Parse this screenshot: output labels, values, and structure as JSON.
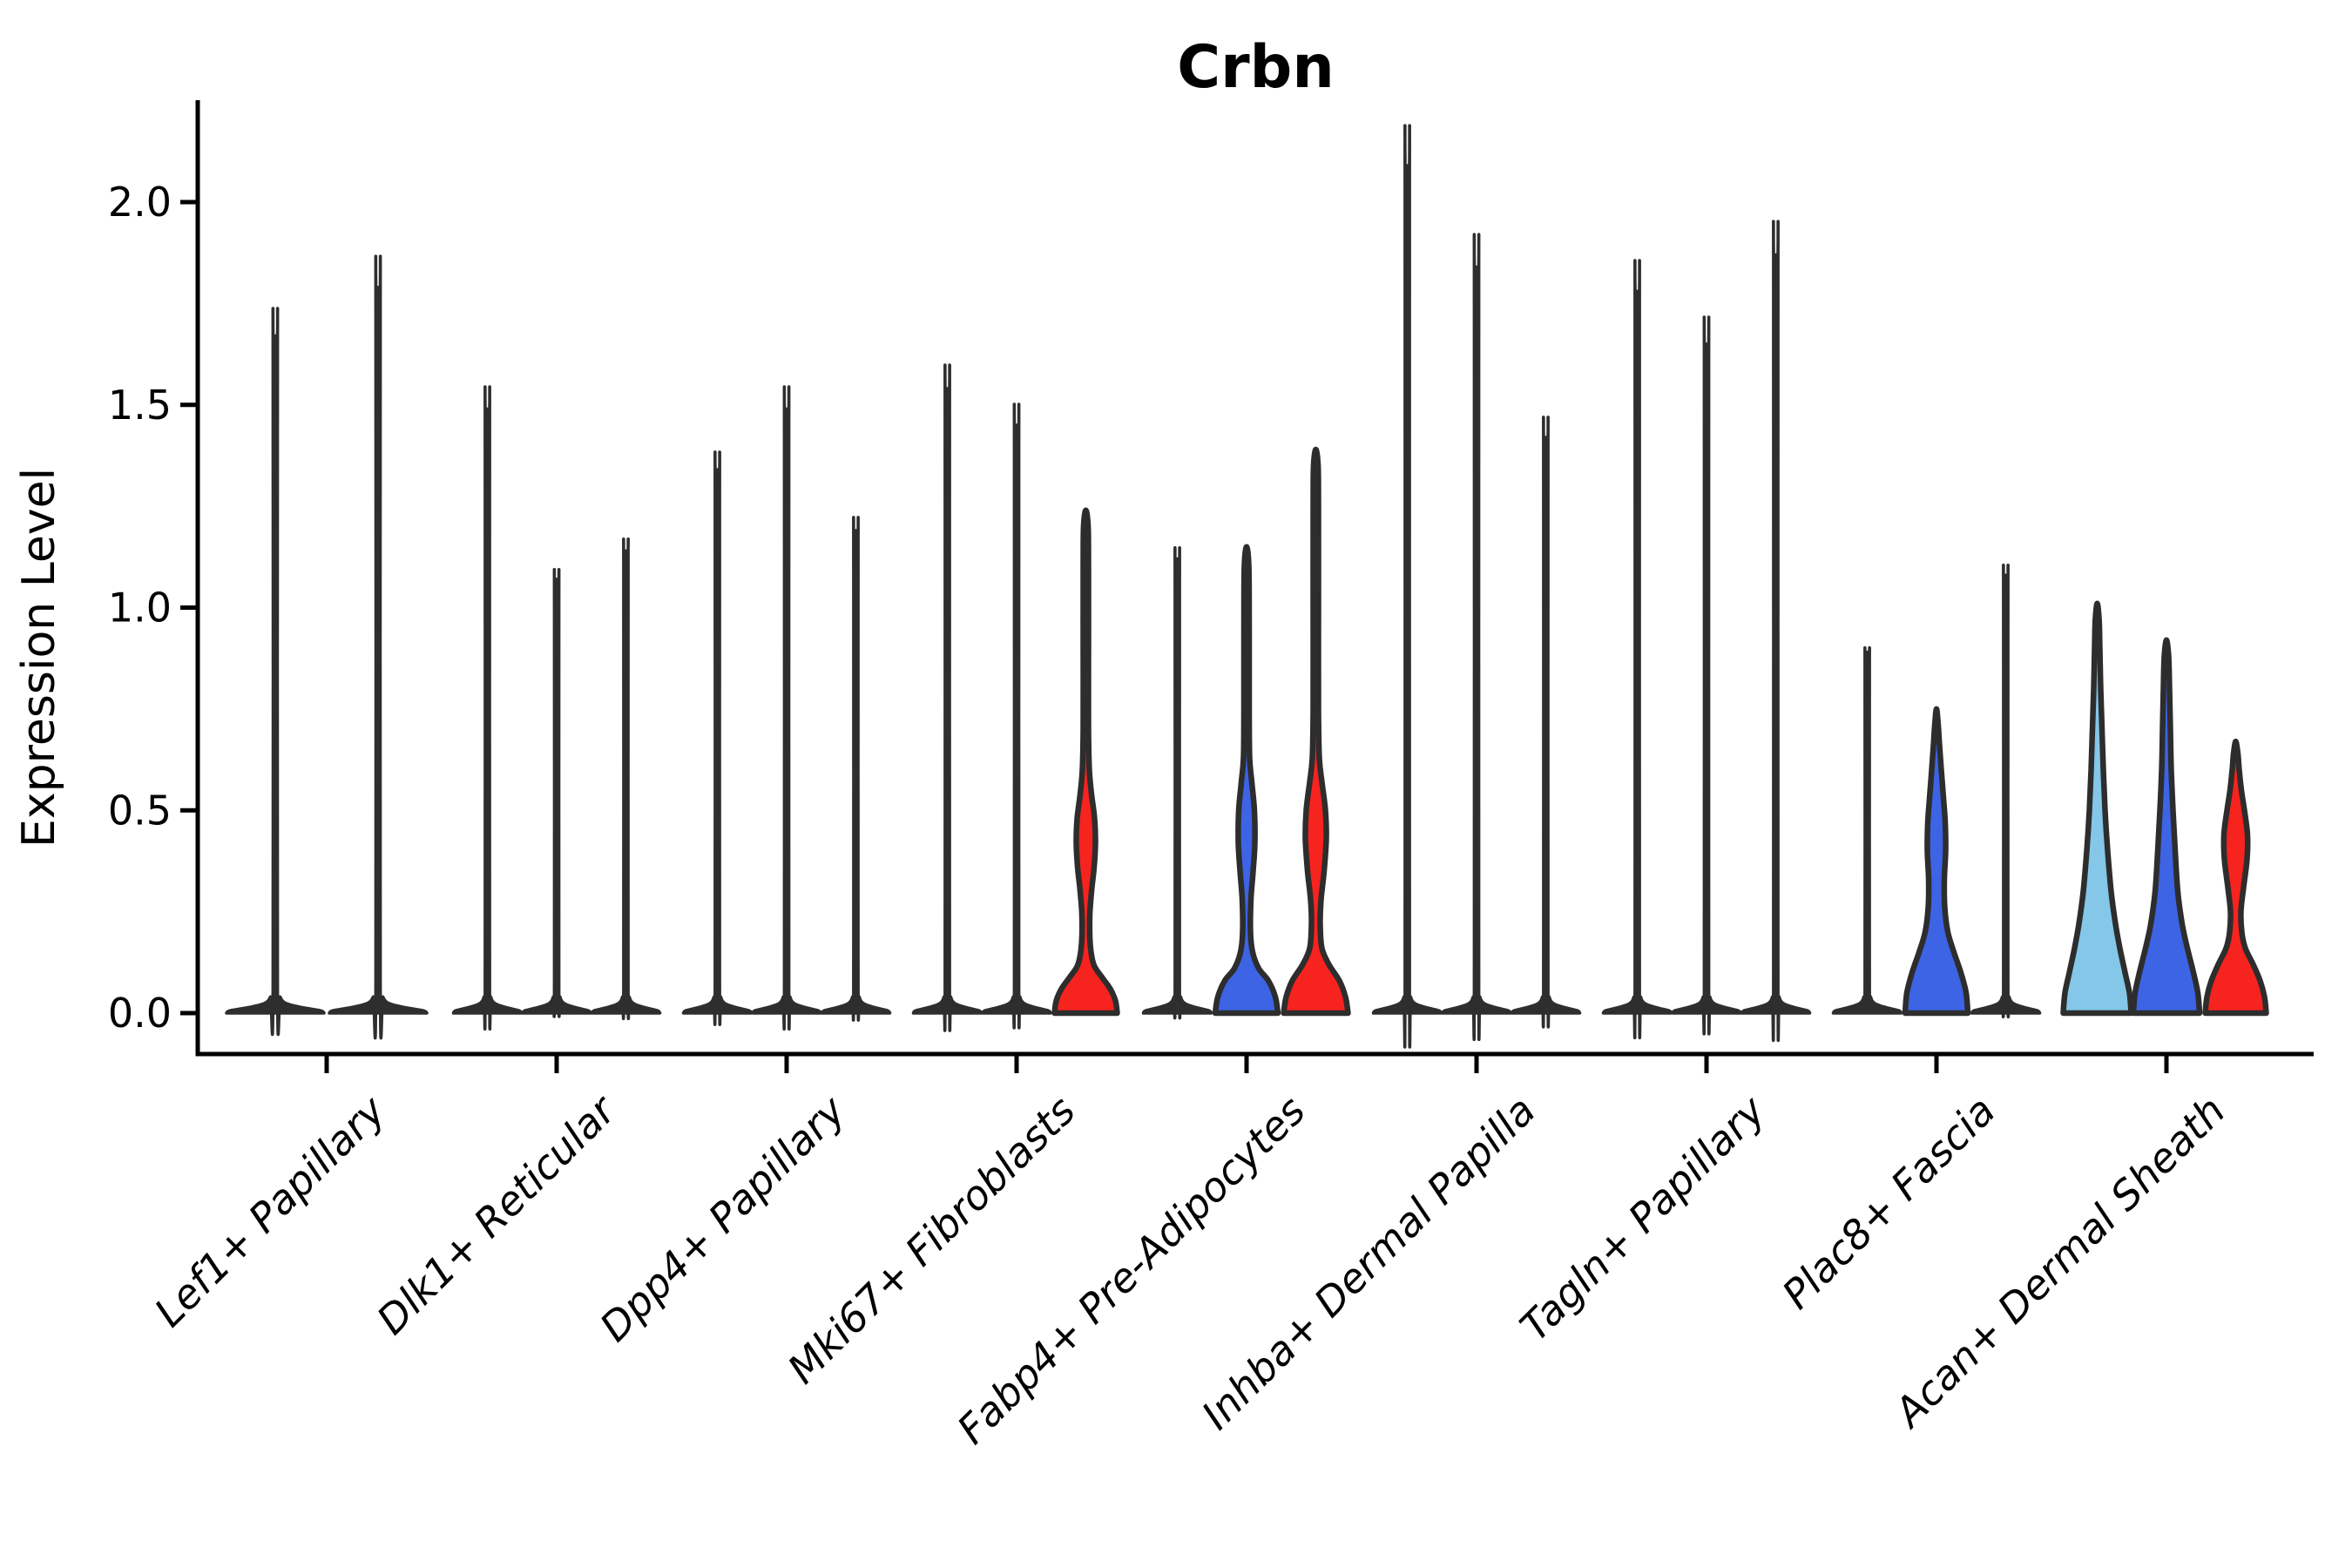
{
  "chart_data": {
    "type": "violin",
    "title": "Crbn",
    "ylabel": "Expression Level",
    "xlabel": "",
    "grid": false,
    "legend_position": "none",
    "ylim": [
      0.0,
      2.15
    ],
    "ytick_values": [
      0.0,
      0.5,
      1.0,
      1.5,
      2.0
    ],
    "ytick_labels": [
      "0.0",
      "0.5",
      "1.0",
      "1.5",
      "2.0"
    ],
    "categories": [
      "Lef1+ Papillary",
      "Dlk1+ Reticular",
      "Dpp4+ Papillary",
      "Mki67+ Fibroblasts",
      "Fabp4+ Pre-Adipocytes",
      "Inhba+ Dermal Papilla",
      "Tagln+ Papillary",
      "Plac8+ Fascia",
      "Acan+ Dermal Sheath"
    ],
    "palette": {
      "split1": "#84c7e8",
      "split2": "#3d64e5",
      "split3": "#f7231f",
      "thin": "#2e2e2e",
      "outline": "#2d2d2d",
      "axis": "#000000"
    },
    "groups": [
      {
        "label": "Lef1+ Papillary",
        "violins": [
          {
            "kind": "thin",
            "max": 1.67
          },
          {
            "kind": "thin",
            "max": 1.79
          }
        ]
      },
      {
        "label": "Dlk1+ Reticular",
        "violins": [
          {
            "kind": "thin",
            "max": 1.49
          },
          {
            "kind": "thin",
            "max": 1.07
          },
          {
            "kind": "thin",
            "max": 1.14
          }
        ]
      },
      {
        "label": "Dpp4+ Papillary",
        "violins": [
          {
            "kind": "thin",
            "max": 1.34
          },
          {
            "kind": "thin",
            "max": 1.49
          },
          {
            "kind": "thin",
            "max": 1.19
          }
        ]
      },
      {
        "label": "Mki67+ Fibroblasts",
        "violins": [
          {
            "kind": "thin",
            "max": 1.54
          },
          {
            "kind": "thin",
            "max": 1.45
          },
          {
            "kind": "body",
            "color": "split3",
            "max": 1.24,
            "profile": [
              [
                0,
                36
              ],
              [
                0.03,
                34
              ],
              [
                0.06,
                28
              ],
              [
                0.09,
                18
              ],
              [
                0.12,
                9
              ],
              [
                0.17,
                5
              ],
              [
                0.24,
                4.5
              ],
              [
                0.3,
                6.5
              ],
              [
                0.36,
                9.5
              ],
              [
                0.42,
                11
              ],
              [
                0.48,
                10
              ],
              [
                0.54,
                6.5
              ],
              [
                0.6,
                4
              ],
              [
                0.7,
                3
              ],
              [
                0.9,
                3
              ],
              [
                1.1,
                3
              ],
              [
                1.2,
                2.6
              ],
              [
                1.24,
                0
              ]
            ]
          }
        ]
      },
      {
        "label": "Fabp4+ Pre-Adipocytes",
        "violins": [
          {
            "kind": "thin",
            "max": 1.12
          },
          {
            "kind": "body",
            "color": "split2",
            "max": 1.15,
            "profile": [
              [
                0,
                36
              ],
              [
                0.04,
                33
              ],
              [
                0.08,
                25
              ],
              [
                0.11,
                14
              ],
              [
                0.15,
                7
              ],
              [
                0.2,
                4.5
              ],
              [
                0.28,
                5
              ],
              [
                0.35,
                7.5
              ],
              [
                0.42,
                9.5
              ],
              [
                0.5,
                9
              ],
              [
                0.57,
                6
              ],
              [
                0.63,
                3.5
              ],
              [
                0.75,
                3
              ],
              [
                0.95,
                3
              ],
              [
                1.1,
                2.6
              ],
              [
                1.15,
                0
              ]
            ]
          },
          {
            "kind": "body",
            "color": "split3",
            "max": 1.39,
            "profile": [
              [
                0,
                37
              ],
              [
                0.04,
                34
              ],
              [
                0.08,
                27
              ],
              [
                0.12,
                15
              ],
              [
                0.16,
                7
              ],
              [
                0.22,
                5
              ],
              [
                0.28,
                6
              ],
              [
                0.35,
                9.5
              ],
              [
                0.43,
                12
              ],
              [
                0.5,
                11
              ],
              [
                0.57,
                7
              ],
              [
                0.63,
                4
              ],
              [
                0.75,
                3
              ],
              [
                1.0,
                3
              ],
              [
                1.25,
                3
              ],
              [
                1.35,
                2.6
              ],
              [
                1.39,
                0
              ]
            ]
          }
        ]
      },
      {
        "label": "Inhba+ Dermal Papilla",
        "violins": [
          {
            "kind": "thin",
            "max": 2.09
          },
          {
            "kind": "thin",
            "max": 1.84
          },
          {
            "kind": "thin",
            "max": 1.42
          }
        ]
      },
      {
        "label": "Tagln+ Papillary",
        "violins": [
          {
            "kind": "thin",
            "max": 1.78
          },
          {
            "kind": "thin",
            "max": 1.65
          },
          {
            "kind": "thin",
            "max": 1.87
          }
        ]
      },
      {
        "label": "Plac8+ Fascia",
        "violins": [
          {
            "kind": "thin",
            "max": 0.89
          },
          {
            "kind": "body",
            "color": "split2",
            "max": 0.75,
            "profile": [
              [
                0,
                36
              ],
              [
                0.05,
                34
              ],
              [
                0.1,
                28
              ],
              [
                0.15,
                20
              ],
              [
                0.2,
                13
              ],
              [
                0.26,
                9.5
              ],
              [
                0.33,
                9
              ],
              [
                0.4,
                10.5
              ],
              [
                0.47,
                10
              ],
              [
                0.53,
                8
              ],
              [
                0.6,
                5.5
              ],
              [
                0.66,
                3.5
              ],
              [
                0.71,
                2
              ],
              [
                0.75,
                0
              ]
            ]
          },
          {
            "kind": "thin",
            "max": 1.08
          }
        ]
      },
      {
        "label": "Acan+ Dermal Sheath",
        "violins": [
          {
            "kind": "body",
            "color": "split1",
            "max": 1.01,
            "profile": [
              [
                0,
                39
              ],
              [
                0.05,
                37
              ],
              [
                0.1,
                32
              ],
              [
                0.16,
                26
              ],
              [
                0.22,
                21
              ],
              [
                0.3,
                16
              ],
              [
                0.4,
                12
              ],
              [
                0.5,
                9
              ],
              [
                0.6,
                7
              ],
              [
                0.7,
                5.5
              ],
              [
                0.8,
                4
              ],
              [
                0.9,
                3
              ],
              [
                0.97,
                2.2
              ],
              [
                1.01,
                0
              ]
            ]
          },
          {
            "kind": "body",
            "color": "split2",
            "max": 0.92,
            "profile": [
              [
                0,
                38
              ],
              [
                0.05,
                36
              ],
              [
                0.1,
                31
              ],
              [
                0.16,
                24
              ],
              [
                0.22,
                18
              ],
              [
                0.3,
                13
              ],
              [
                0.4,
                10
              ],
              [
                0.5,
                7.5
              ],
              [
                0.6,
                5.5
              ],
              [
                0.7,
                4.5
              ],
              [
                0.8,
                3.5
              ],
              [
                0.88,
                2.5
              ],
              [
                0.92,
                0
              ]
            ]
          },
          {
            "kind": "body",
            "color": "split3",
            "max": 0.67,
            "profile": [
              [
                0,
                35
              ],
              [
                0.04,
                33
              ],
              [
                0.08,
                28
              ],
              [
                0.12,
                20
              ],
              [
                0.16,
                11
              ],
              [
                0.2,
                7
              ],
              [
                0.25,
                6
              ],
              [
                0.31,
                9
              ],
              [
                0.38,
                13
              ],
              [
                0.44,
                13.5
              ],
              [
                0.5,
                10
              ],
              [
                0.55,
                6.5
              ],
              [
                0.6,
                4
              ],
              [
                0.64,
                2.5
              ],
              [
                0.67,
                0
              ]
            ]
          }
        ]
      }
    ]
  }
}
